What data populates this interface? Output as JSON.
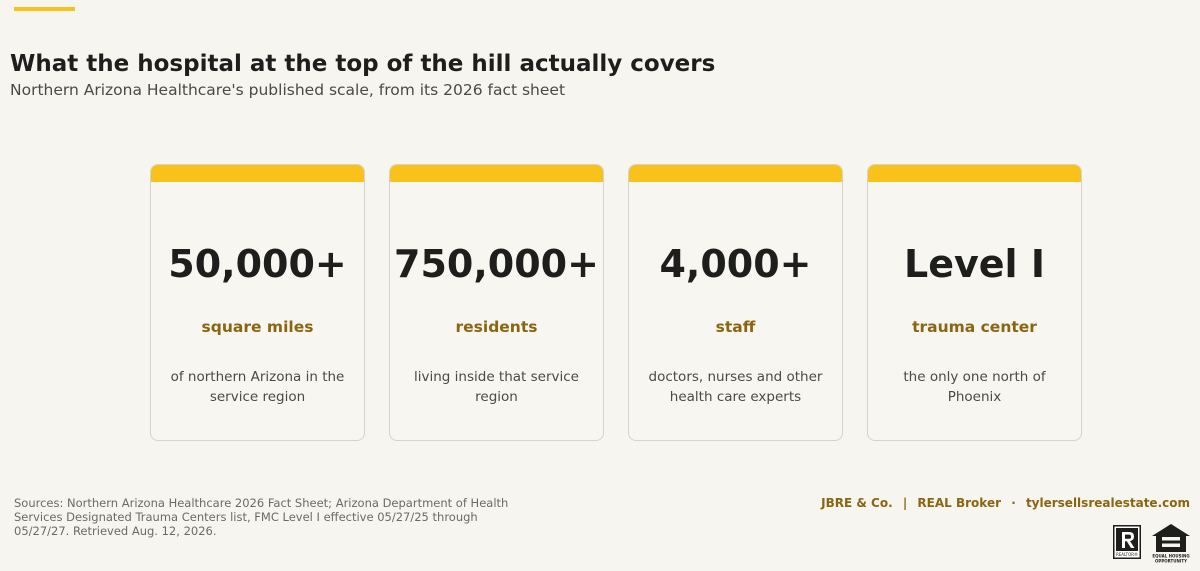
{
  "header": {
    "title": "What the hospital at the top of the hill actually covers",
    "subtitle": "Northern Arizona Healthcare's published scale, from its 2026 fact sheet"
  },
  "colors": {
    "accent": "#f8c21a",
    "unit_text": "#8c6510",
    "background": "#f6f5f0"
  },
  "stats": [
    {
      "value": "50,000+",
      "unit": "square miles",
      "description": "of northern Arizona in the service region"
    },
    {
      "value": "750,000+",
      "unit": "residents",
      "description": "living inside that service region"
    },
    {
      "value": "4,000+",
      "unit": "staff",
      "description": "doctors, nurses and other health care experts"
    },
    {
      "value": "Level I",
      "unit": "trauma center",
      "description": "the only one north of Phoenix"
    }
  ],
  "footer": {
    "sources": "Sources: Northern Arizona Healthcare 2026 Fact Sheet; Arizona Department of Health Services Designated Trauma Centers list, FMC Level I effective 05/27/25 through 05/27/27. Retrieved Aug. 12, 2026.",
    "brand": "JBRE & Co.",
    "separator_1": "|",
    "broker": "REAL Broker",
    "separator_2": "·",
    "website": "tylersellsrealestate.com",
    "realtor_logo_text": "REALTOR®",
    "eho_logo_text": "EQUAL HOUSING OPPORTUNITY",
    "icons": [
      "realtor-logo",
      "equal-housing-opportunity-logo"
    ]
  }
}
